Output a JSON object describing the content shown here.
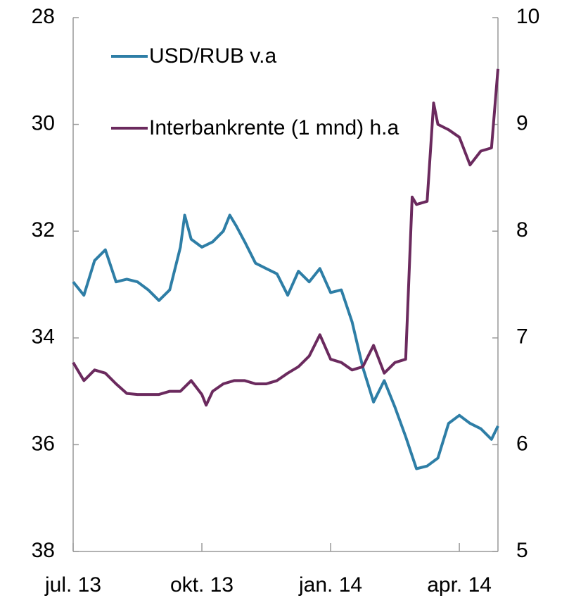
{
  "chart_data": {
    "type": "line",
    "xlim": [
      0,
      9.9
    ],
    "xticks": [
      {
        "value": 0,
        "label": "jul. 13"
      },
      {
        "value": 3,
        "label": "okt. 13"
      },
      {
        "value": 6,
        "label": "jan. 14"
      },
      {
        "value": 9,
        "label": "apr. 14"
      }
    ],
    "ylim": [
      38,
      28
    ],
    "yticks": [
      28,
      30,
      32,
      34,
      36,
      38
    ],
    "y2lim": [
      5,
      10
    ],
    "y2ticks": [
      5,
      6,
      7,
      8,
      9,
      10
    ],
    "legend": "upper left",
    "series": [
      {
        "name": "USD/RUB v.a",
        "color": "#2e7ea6",
        "x": [
          0,
          0.25,
          0.5,
          0.75,
          1.0,
          1.25,
          1.5,
          1.75,
          2.0,
          2.25,
          2.5,
          2.6,
          2.75,
          3.0,
          3.25,
          3.5,
          3.65,
          3.8,
          4.0,
          4.25,
          4.5,
          4.75,
          5.0,
          5.25,
          5.5,
          5.75,
          6.0,
          6.25,
          6.5,
          6.75,
          7.0,
          7.25,
          7.5,
          7.75,
          8.0,
          8.25,
          8.5,
          8.75,
          9.0,
          9.25,
          9.5,
          9.75,
          9.9
        ],
        "values": [
          32.95,
          33.2,
          32.55,
          32.35,
          32.95,
          32.9,
          32.95,
          33.1,
          33.3,
          33.1,
          32.3,
          31.7,
          32.15,
          32.3,
          32.2,
          32.0,
          31.7,
          31.9,
          32.2,
          32.6,
          32.7,
          32.8,
          33.2,
          32.75,
          32.95,
          32.7,
          33.15,
          33.1,
          33.7,
          34.55,
          35.2,
          34.8,
          35.3,
          35.85,
          36.45,
          36.4,
          36.25,
          35.6,
          35.45,
          35.6,
          35.7,
          35.9,
          35.65
        ]
      },
      {
        "name": "Interbankrente (1 mnd) h.a",
        "color": "#6b2a5e",
        "axis": "y2",
        "x": [
          0,
          0.25,
          0.5,
          0.75,
          1.0,
          1.25,
          1.5,
          1.75,
          2.0,
          2.25,
          2.5,
          2.75,
          3.0,
          3.1,
          3.25,
          3.5,
          3.75,
          4.0,
          4.25,
          4.5,
          4.75,
          5.0,
          5.25,
          5.5,
          5.75,
          6.0,
          6.25,
          6.5,
          6.75,
          7.0,
          7.25,
          7.5,
          7.75,
          7.9,
          8.0,
          8.25,
          8.4,
          8.5,
          8.75,
          9.0,
          9.25,
          9.5,
          9.75,
          9.9
        ],
        "values": [
          6.77,
          6.6,
          6.7,
          6.67,
          6.57,
          6.48,
          6.47,
          6.47,
          6.47,
          6.5,
          6.5,
          6.6,
          6.47,
          6.37,
          6.5,
          6.57,
          6.6,
          6.6,
          6.57,
          6.57,
          6.6,
          6.67,
          6.73,
          6.83,
          7.03,
          6.8,
          6.77,
          6.7,
          6.73,
          6.93,
          6.67,
          6.77,
          6.8,
          8.32,
          8.25,
          8.28,
          9.2,
          9.0,
          8.95,
          8.88,
          8.62,
          8.75,
          8.78,
          9.52
        ]
      }
    ]
  }
}
